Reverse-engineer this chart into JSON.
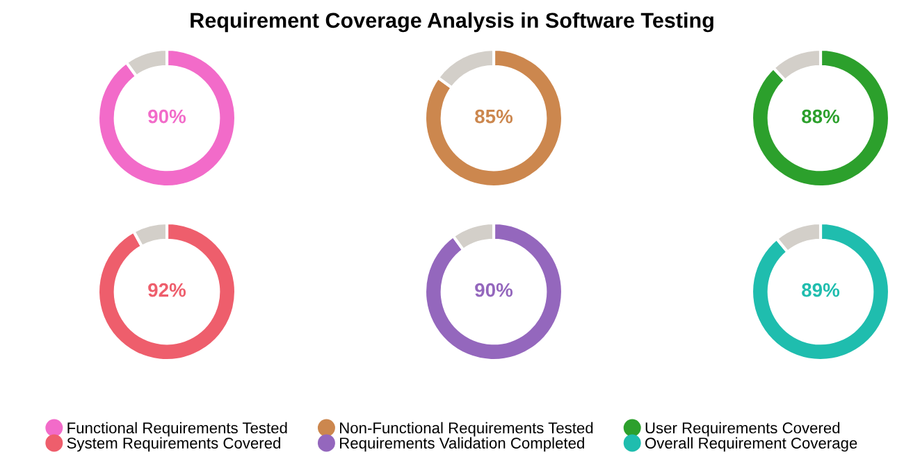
{
  "chart_data": [
    {
      "type": "donut",
      "title": "Requirement Coverage Analysis in Software Testing",
      "categories": [
        "Functional Requirements Tested",
        null
      ],
      "values": [
        90,
        10
      ],
      "colors": [
        "#f26bc9",
        "#d3cfc9"
      ],
      "value_labels": [
        "90%",
        null
      ],
      "legend": "bottom"
    },
    {
      "type": "donut",
      "categories": [
        "Non-Functional Requirements Tested",
        null
      ],
      "values": [
        85,
        15
      ],
      "colors": [
        "#cc874e",
        "#d3cfc9"
      ],
      "value_labels": [
        "85%",
        null
      ],
      "legend": "bottom"
    },
    {
      "type": "donut",
      "categories": [
        "User Requirements Covered",
        null
      ],
      "values": [
        88,
        12
      ],
      "colors": [
        "#2ca02c",
        "#d3cfc9"
      ],
      "value_labels": [
        "88%",
        null
      ],
      "legend": "bottom"
    },
    {
      "type": "donut",
      "categories": [
        "System Requirements Covered",
        null
      ],
      "values": [
        92,
        8
      ],
      "colors": [
        "#ee5e6c",
        "#d3cfc9"
      ],
      "value_labels": [
        "92%",
        null
      ],
      "legend": "bottom"
    },
    {
      "type": "donut",
      "categories": [
        "Requirements Validation Completed",
        null
      ],
      "values": [
        90,
        10
      ],
      "colors": [
        "#9467bd",
        "#d3cfc9"
      ],
      "value_labels": [
        "90%",
        null
      ],
      "legend": "bottom"
    },
    {
      "type": "donut",
      "categories": [
        "Overall Requirement Coverage",
        null
      ],
      "values": [
        89,
        11
      ],
      "colors": [
        "#1fbdae",
        "#d3cfc9"
      ],
      "value_labels": [
        "89%",
        null
      ],
      "legend": "bottom"
    }
  ]
}
